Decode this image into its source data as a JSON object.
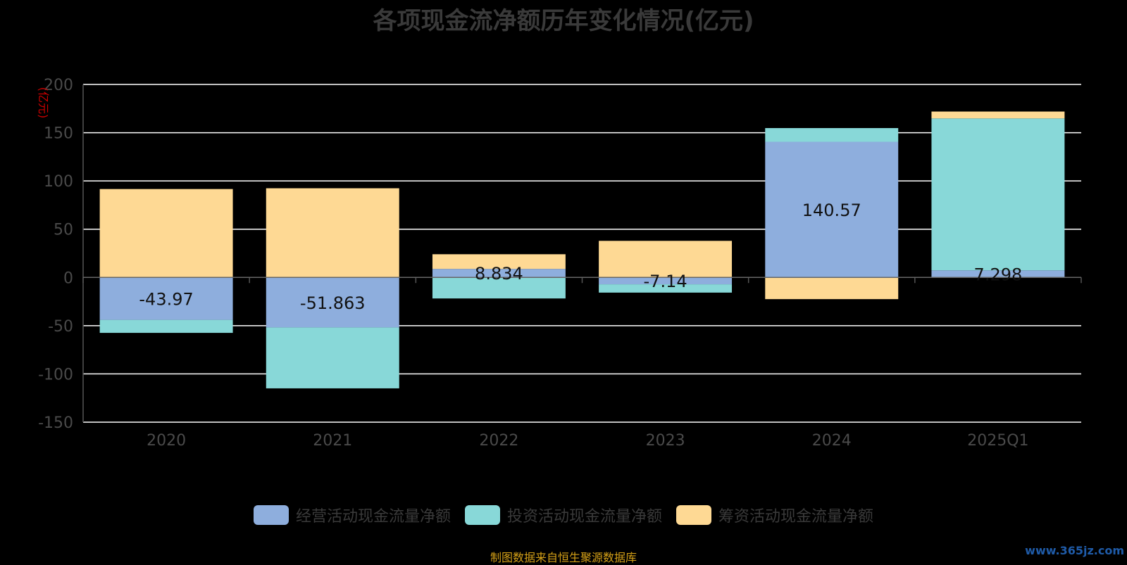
{
  "title": "各项现金流净额历年变化情况(亿元)",
  "source": "制图数据来自恒生聚源数据库",
  "watermark": "www.365jz.com",
  "colors": {
    "background": "#000000",
    "grid": "#ffffff",
    "axis_text": "#4a4a4a",
    "unit_label": "#cc0000",
    "operating": "#8eaedd",
    "investing": "#88d8d8",
    "financing": "#fed994"
  },
  "chart_data": {
    "type": "bar",
    "stacked": true,
    "ylabel": "(亿元)",
    "ylim": [
      -150,
      200
    ],
    "yticks": [
      200,
      150,
      100,
      50,
      0,
      -50,
      -100,
      -150
    ],
    "grid": true,
    "legend_position": "bottom",
    "categories": [
      "2020",
      "2021",
      "2022",
      "2023",
      "2024",
      "2025Q1"
    ],
    "series": [
      {
        "name": "经营活动现金流量净额",
        "color_key": "operating",
        "values": [
          -43.97,
          -51.863,
          8.834,
          -7.14,
          140.57,
          7.298
        ],
        "labels": [
          "-43.97",
          "-51.863",
          "8.834",
          "-7.14",
          "140.57",
          "7.298"
        ]
      },
      {
        "name": "投资活动现金流量净额",
        "color_key": "investing",
        "values": [
          -13.5,
          -63.1,
          -21.8,
          -8.6,
          14.2,
          157.5
        ]
      },
      {
        "name": "筹资活动现金流量净额",
        "color_key": "financing",
        "values": [
          91.6,
          92.4,
          15.2,
          37.9,
          -22.5,
          7.1
        ]
      }
    ]
  }
}
